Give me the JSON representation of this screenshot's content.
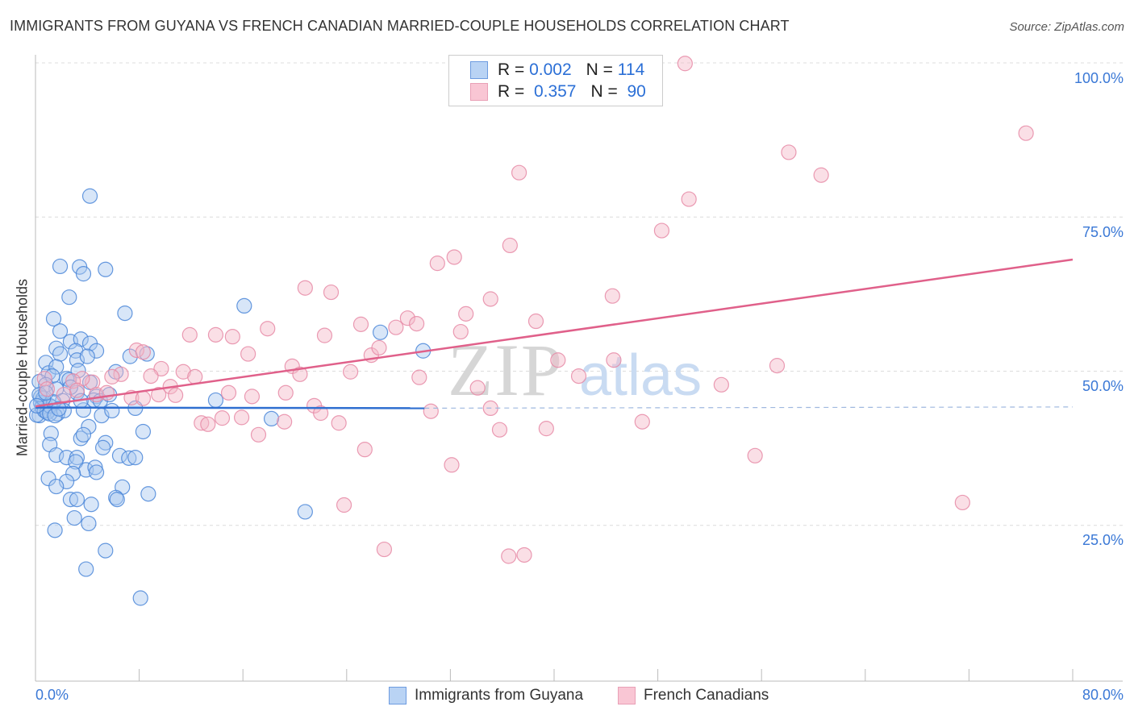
{
  "chart_data": {
    "type": "scatter",
    "title": "IMMIGRANTS FROM GUYANA VS FRENCH CANADIAN MARRIED-COUPLE HOUSEHOLDS CORRELATION CHART",
    "source": "Source: ZipAtlas.com",
    "xlabel": "",
    "ylabel": "Married-couple Households",
    "xlim": [
      0,
      80
    ],
    "ylim": [
      0,
      100
    ],
    "x_tick_labels": [
      "0.0%",
      "80.0%"
    ],
    "y_ticks": [
      25,
      50,
      75,
      100
    ],
    "y_tick_labels": [
      "25.0%",
      "50.0%",
      "75.0%",
      "100.0%"
    ],
    "grid": true,
    "watermark": "ZIPatlas",
    "legend_placement": "top-center",
    "stats": [
      {
        "r_label": "R =",
        "r": "0.002",
        "n_label": "N =",
        "n": "114"
      },
      {
        "r_label": "R =",
        "r": "0.357",
        "n_label": "N =",
        "n": "90"
      }
    ],
    "series": [
      {
        "name": "Immigrants from Guyana",
        "color": "#4a86d8",
        "fill": "#a9c8f0",
        "trend": {
          "x": [
            0,
            30,
            80
          ],
          "y": [
            44.1,
            44.0,
            44.2
          ],
          "solid_until": 30
        },
        "points": [
          [
            4.2,
            78.4
          ],
          [
            1.9,
            67.0
          ],
          [
            3.4,
            66.9
          ],
          [
            5.4,
            66.5
          ],
          [
            3.7,
            65.8
          ],
          [
            2.6,
            62.0
          ],
          [
            6.9,
            59.4
          ],
          [
            16.1,
            60.6
          ],
          [
            1.4,
            58.5
          ],
          [
            26.6,
            56.3
          ],
          [
            1.9,
            56.5
          ],
          [
            2.7,
            54.8
          ],
          [
            3.5,
            55.2
          ],
          [
            4.2,
            54.5
          ],
          [
            1.6,
            53.7
          ],
          [
            1.9,
            52.8
          ],
          [
            3.1,
            53.3
          ],
          [
            4.7,
            53.3
          ],
          [
            7.3,
            52.4
          ],
          [
            8.6,
            52.8
          ],
          [
            0.8,
            51.4
          ],
          [
            3.2,
            51.8
          ],
          [
            4.0,
            52.4
          ],
          [
            1.0,
            49.7
          ],
          [
            1.6,
            50.7
          ],
          [
            1.3,
            49.2
          ],
          [
            2.4,
            48.8
          ],
          [
            3.3,
            50.1
          ],
          [
            6.2,
            49.9
          ],
          [
            29.9,
            53.3
          ],
          [
            0.3,
            48.3
          ],
          [
            0.8,
            47.8
          ],
          [
            1.6,
            47.1
          ],
          [
            2.1,
            45.2
          ],
          [
            2.6,
            48.6
          ],
          [
            3.2,
            46.5
          ],
          [
            4.7,
            45.9
          ],
          [
            4.5,
            45.3
          ],
          [
            13.9,
            45.3
          ],
          [
            0.4,
            45.8
          ],
          [
            0.7,
            44.9
          ],
          [
            1.2,
            44.2
          ],
          [
            1.0,
            43.6
          ],
          [
            0.3,
            42.8
          ],
          [
            1.7,
            43.1
          ],
          [
            2.2,
            43.6
          ],
          [
            3.7,
            43.7
          ],
          [
            5.1,
            42.8
          ],
          [
            5.9,
            43.6
          ],
          [
            7.7,
            44.0
          ],
          [
            18.2,
            42.3
          ],
          [
            8.3,
            40.2
          ],
          [
            4.1,
            41.0
          ],
          [
            3.5,
            39.1
          ],
          [
            3.7,
            39.7
          ],
          [
            1.2,
            39.9
          ],
          [
            1.1,
            38.1
          ],
          [
            5.4,
            38.4
          ],
          [
            5.2,
            37.6
          ],
          [
            1.6,
            36.4
          ],
          [
            2.4,
            36.0
          ],
          [
            3.2,
            36.0
          ],
          [
            6.5,
            36.3
          ],
          [
            7.2,
            35.9
          ],
          [
            7.7,
            36.0
          ],
          [
            3.1,
            35.3
          ],
          [
            3.9,
            34.0
          ],
          [
            4.6,
            34.4
          ],
          [
            4.7,
            33.6
          ],
          [
            2.9,
            33.4
          ],
          [
            2.4,
            32.1
          ],
          [
            1.0,
            32.6
          ],
          [
            1.6,
            31.3
          ],
          [
            6.7,
            31.2
          ],
          [
            8.7,
            30.1
          ],
          [
            2.7,
            29.2
          ],
          [
            3.2,
            29.2
          ],
          [
            4.3,
            28.4
          ],
          [
            6.2,
            29.5
          ],
          [
            6.3,
            29.2
          ],
          [
            3.0,
            26.2
          ],
          [
            4.1,
            25.3
          ],
          [
            20.8,
            27.2
          ],
          [
            1.5,
            24.2
          ],
          [
            5.4,
            20.9
          ],
          [
            3.9,
            17.9
          ],
          [
            8.1,
            13.2
          ],
          [
            0.1,
            42.9
          ],
          [
            0.4,
            44.9
          ],
          [
            0.5,
            44.2
          ],
          [
            0.7,
            43.6
          ],
          [
            0.9,
            43.3
          ],
          [
            1.1,
            44.4
          ],
          [
            1.4,
            45.0
          ],
          [
            0.6,
            45.6
          ],
          [
            0.3,
            46.2
          ],
          [
            0.8,
            46.5
          ],
          [
            1.1,
            43.1
          ],
          [
            1.5,
            42.8
          ],
          [
            1.8,
            43.9
          ],
          [
            0.1,
            44.4
          ],
          [
            2.7,
            47.4
          ],
          [
            4.2,
            48.2
          ],
          [
            5.0,
            45.2
          ],
          [
            5.7,
            46.2
          ],
          [
            3.5,
            45.2
          ]
        ]
      },
      {
        "name": "French Canadians",
        "color": "#e68aa6",
        "fill": "#f4b8c8",
        "trend": {
          "x": [
            0,
            80
          ],
          "y": [
            44.3,
            68.1
          ],
          "solid_until": 80
        },
        "points": [
          [
            47.7,
            99.9
          ],
          [
            50.1,
            99.9
          ],
          [
            76.4,
            88.6
          ],
          [
            58.1,
            85.5
          ],
          [
            60.6,
            81.8
          ],
          [
            37.3,
            82.2
          ],
          [
            50.4,
            77.9
          ],
          [
            48.3,
            72.8
          ],
          [
            36.6,
            70.4
          ],
          [
            32.3,
            68.5
          ],
          [
            31.0,
            67.5
          ],
          [
            20.8,
            63.5
          ],
          [
            22.8,
            62.8
          ],
          [
            35.1,
            61.7
          ],
          [
            44.5,
            62.2
          ],
          [
            33.2,
            59.3
          ],
          [
            28.7,
            58.6
          ],
          [
            29.4,
            57.7
          ],
          [
            25.1,
            57.6
          ],
          [
            27.8,
            57.1
          ],
          [
            17.9,
            56.9
          ],
          [
            11.9,
            55.9
          ],
          [
            13.9,
            55.9
          ],
          [
            15.2,
            55.6
          ],
          [
            22.3,
            55.8
          ],
          [
            32.8,
            56.4
          ],
          [
            38.6,
            58.1
          ],
          [
            25.9,
            52.6
          ],
          [
            16.4,
            52.8
          ],
          [
            26.5,
            53.8
          ],
          [
            7.8,
            53.4
          ],
          [
            8.3,
            53.1
          ],
          [
            40.3,
            51.8
          ],
          [
            44.6,
            51.8
          ],
          [
            57.2,
            50.9
          ],
          [
            19.8,
            50.8
          ],
          [
            9.7,
            50.4
          ],
          [
            11.4,
            49.9
          ],
          [
            12.3,
            49.1
          ],
          [
            8.9,
            49.2
          ],
          [
            6.6,
            49.5
          ],
          [
            5.9,
            49.1
          ],
          [
            20.4,
            49.5
          ],
          [
            24.3,
            49.9
          ],
          [
            29.6,
            49.0
          ],
          [
            41.9,
            49.2
          ],
          [
            52.9,
            47.8
          ],
          [
            34.1,
            47.3
          ],
          [
            4.4,
            48.2
          ],
          [
            3.6,
            48.8
          ],
          [
            2.9,
            48.4
          ],
          [
            0.7,
            48.8
          ],
          [
            0.9,
            47.1
          ],
          [
            14.9,
            46.5
          ],
          [
            16.7,
            45.9
          ],
          [
            19.3,
            46.5
          ],
          [
            7.4,
            45.7
          ],
          [
            8.3,
            45.6
          ],
          [
            10.4,
            47.5
          ],
          [
            9.5,
            46.2
          ],
          [
            10.8,
            46.1
          ],
          [
            21.5,
            44.4
          ],
          [
            22.0,
            43.2
          ],
          [
            35.1,
            44.0
          ],
          [
            30.5,
            43.5
          ],
          [
            12.8,
            41.6
          ],
          [
            13.3,
            41.4
          ],
          [
            14.4,
            42.4
          ],
          [
            15.9,
            42.5
          ],
          [
            19.2,
            41.8
          ],
          [
            23.4,
            41.6
          ],
          [
            17.2,
            39.7
          ],
          [
            35.8,
            40.5
          ],
          [
            39.4,
            40.7
          ],
          [
            46.8,
            41.8
          ],
          [
            25.4,
            37.3
          ],
          [
            32.1,
            34.8
          ],
          [
            55.5,
            36.3
          ],
          [
            23.8,
            28.3
          ],
          [
            71.5,
            28.7
          ],
          [
            26.9,
            21.1
          ],
          [
            36.5,
            20.0
          ],
          [
            37.7,
            20.2
          ],
          [
            3.2,
            46.9
          ],
          [
            2.2,
            46.2
          ],
          [
            4.7,
            46.2
          ],
          [
            5.5,
            46.5
          ]
        ]
      }
    ]
  }
}
